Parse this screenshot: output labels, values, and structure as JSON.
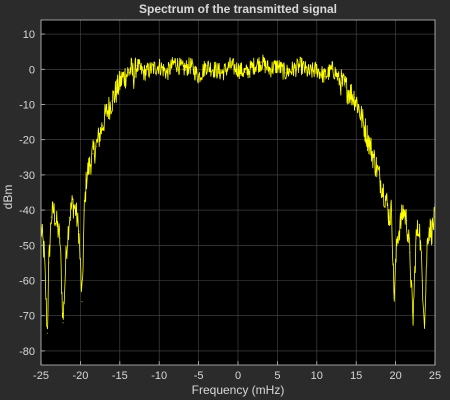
{
  "colors": {
    "figure_background": "#2b2b2b",
    "axes_background": "#000000",
    "grid": "#4a4a4a",
    "axis_line": "#bfbfbf",
    "text": "#d8d8d8",
    "series": "#ffff00"
  },
  "chart_data": {
    "type": "line",
    "title": "Spectrum of the transmitted signal",
    "xlabel": "Frequency (mHz)",
    "ylabel": "dBm",
    "xlim": [
      -25,
      25
    ],
    "ylim": [
      -84,
      14
    ],
    "xticks": [
      -25,
      -20,
      -15,
      -10,
      -5,
      0,
      5,
      10,
      15,
      20,
      25
    ],
    "yticks": [
      10,
      0,
      -10,
      -20,
      -30,
      -40,
      -50,
      -60,
      -70,
      -80
    ],
    "xtick_labels": [
      "-25",
      "-20",
      "-15",
      "-10",
      "-5",
      "0",
      "5",
      "10",
      "15",
      "20",
      "25"
    ],
    "ytick_labels": [
      "10",
      "0",
      "-10",
      "-20",
      "-30",
      "-40",
      "-50",
      "-60",
      "-70",
      "-80"
    ],
    "grid": true,
    "legend": "none",
    "series": [
      {
        "color": "#ffff00",
        "x": [
          -25,
          -24.6,
          -24.2,
          -24,
          -23.7,
          -23.4,
          -23,
          -22.6,
          -22.2,
          -21.8,
          -21.4,
          -21,
          -20.6,
          -20.2,
          -19.8,
          -19.5,
          -19.2,
          -18.8,
          -18.4,
          -18,
          -17.6,
          -17.2,
          -16.8,
          -16.4,
          -16,
          -15.6,
          -15.2,
          -14.8,
          -14.4,
          -14,
          -13.6,
          -13.2,
          -12.8,
          -12.4,
          -12,
          -11,
          -10,
          -9,
          -8,
          -7,
          -6,
          -5,
          -4,
          -3,
          -2,
          -1,
          0,
          1,
          2,
          3,
          4,
          5,
          6,
          7,
          8,
          9,
          10,
          11,
          12,
          12.4,
          12.8,
          13.2,
          13.6,
          14,
          14.4,
          14.8,
          15.2,
          15.6,
          16,
          16.4,
          16.8,
          17.2,
          17.6,
          18,
          18.4,
          18.8,
          19.2,
          19.5,
          19.8,
          20.2,
          20.6,
          21,
          21.4,
          21.8,
          22.2,
          22.6,
          23,
          23.4,
          23.7,
          24,
          24.2,
          24.6,
          25
        ],
        "y": [
          -45,
          -52,
          -75,
          -55,
          -42,
          -40,
          -44,
          -48,
          -72,
          -52,
          -42,
          -38,
          -40,
          -46,
          -66,
          -40,
          -30,
          -27,
          -24,
          -22,
          -19,
          -16,
          -13,
          -11,
          -9,
          -7,
          -5,
          -3,
          -2,
          -1,
          0,
          -2,
          1,
          0,
          -1,
          0,
          1,
          -1,
          2,
          0,
          1,
          -2,
          1,
          0,
          -1,
          1,
          0,
          -1,
          1,
          2,
          0,
          1,
          -1,
          0,
          1,
          -1,
          0,
          -2,
          0,
          -1,
          -3,
          -4,
          -5,
          -6,
          -7,
          -8,
          -10,
          -13,
          -16,
          -19,
          -22,
          -25,
          -28,
          -31,
          -34,
          -37,
          -42,
          -40,
          -65,
          -48,
          -44,
          -40,
          -43,
          -52,
          -72,
          -48,
          -44,
          -60,
          -72,
          -50,
          -45,
          -46,
          -42
        ]
      }
    ]
  }
}
